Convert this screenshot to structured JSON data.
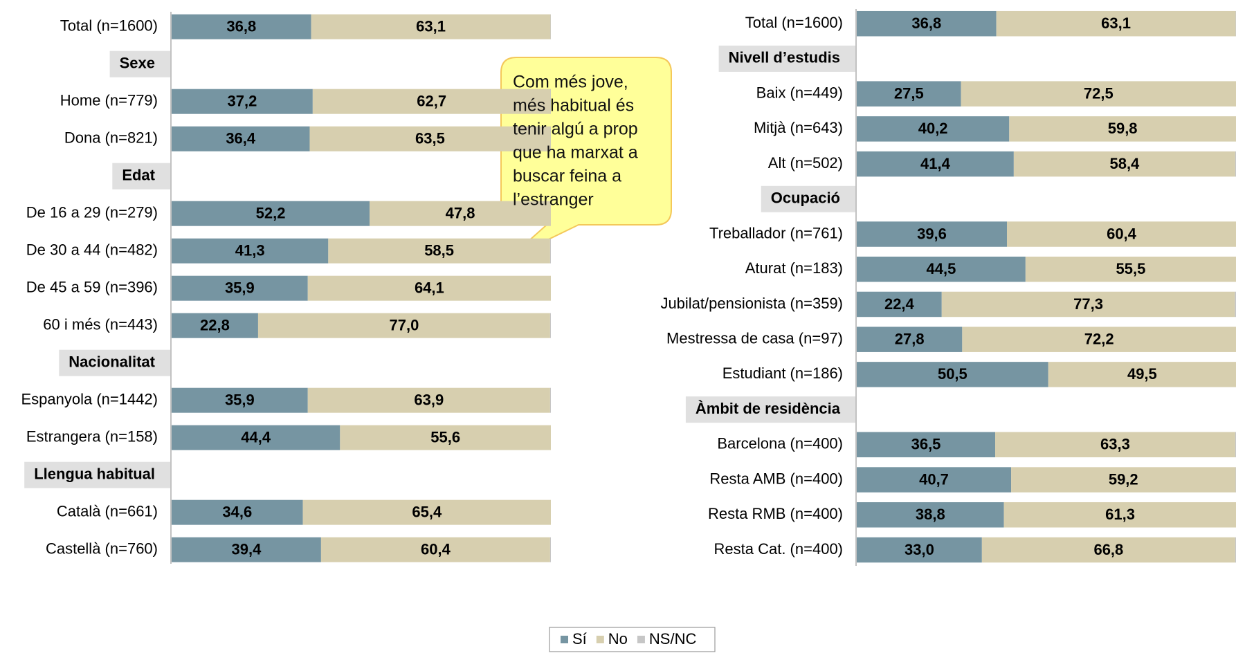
{
  "chart_data": [
    {
      "type": "bar",
      "orientation": "horizontal",
      "stacked": true,
      "categories": [
        "Total (n=1600)",
        "Sexe",
        "Home (n=779)",
        "Dona (n=821)",
        "Edat",
        "De 16 a 29 (n=279)",
        "De 30 a 44 (n=482)",
        "De 45 a 59 (n=396)",
        "60 i més (n=443)",
        "Nacionalitat",
        "Espanyola (n=1442)",
        "Estrangera (n=158)",
        "Llengua habitual",
        "Català (n=661)",
        "Castellà (n=760)"
      ],
      "series": [
        {
          "name": "Sí",
          "color": "#7695a2",
          "values": [
            36.8,
            null,
            37.2,
            36.4,
            null,
            52.2,
            41.3,
            35.9,
            22.8,
            null,
            35.9,
            44.4,
            null,
            34.6,
            39.4
          ],
          "value_labels": [
            "36,8",
            null,
            "37,2",
            "36,4",
            null,
            "52,2",
            "41,3",
            "35,9",
            "22,8",
            null,
            "35,9",
            "44,4",
            null,
            "34,6",
            "39,4"
          ]
        },
        {
          "name": "No",
          "color": "#d7cfaf",
          "values": [
            63.1,
            null,
            62.7,
            63.5,
            null,
            47.8,
            58.5,
            64.1,
            77.0,
            null,
            63.9,
            55.6,
            null,
            65.4,
            60.4
          ],
          "value_labels": [
            "63,1",
            null,
            "62,7",
            "63,5",
            null,
            "47,8",
            "58,5",
            "64,1",
            "77,0",
            null,
            "63,9",
            "55,6",
            null,
            "65,4",
            "60,4"
          ]
        },
        {
          "name": "NS/NC",
          "color": "#c6c6c6",
          "values": [
            0.1,
            null,
            0.1,
            0.1,
            null,
            0,
            0.2,
            0,
            0.2,
            null,
            0.2,
            0,
            null,
            0,
            0.2
          ]
        }
      ],
      "xlim": [
        0,
        100
      ],
      "annotation": [
        "Com més jove,",
        "més habitual és",
        "tenir algú a prop",
        "que ha marxat a",
        "buscar feina a",
        "l’estranger"
      ]
    },
    {
      "type": "bar",
      "orientation": "horizontal",
      "stacked": true,
      "categories": [
        "Total (n=1600)",
        "Nivell d’estudis",
        "Baix (n=449)",
        "Mitjà (n=643)",
        "Alt (n=502)",
        "Ocupació",
        "Treballador (n=761)",
        "Aturat (n=183)",
        "Jubilat/pensionista (n=359)",
        "Mestressa de casa (n=97)",
        "Estudiant (n=186)",
        "Àmbit de residència",
        "Barcelona (n=400)",
        "Resta AMB (n=400)",
        "Resta RMB (n=400)",
        "Resta Cat. (n=400)"
      ],
      "series": [
        {
          "color": "#7695a2",
          "values": [
            36.8,
            null,
            27.5,
            40.2,
            41.4,
            null,
            39.6,
            44.5,
            22.4,
            27.8,
            50.5,
            null,
            36.5,
            40.7,
            38.8,
            33.0
          ],
          "value_labels": [
            "36,8",
            null,
            "27,5",
            "40,2",
            "41,4",
            null,
            "39,6",
            "44,5",
            "22,4",
            "27,8",
            "50,5",
            null,
            "36,5",
            "40,7",
            "38,8",
            "33,0"
          ]
        },
        {
          "color": "#d7cfaf",
          "values": [
            63.1,
            null,
            72.5,
            59.8,
            58.4,
            null,
            60.4,
            55.5,
            77.3,
            72.2,
            49.5,
            null,
            63.3,
            59.2,
            61.3,
            66.8
          ],
          "value_labels": [
            "63,1",
            null,
            "72,5",
            "59,8",
            "58,4",
            null,
            "60,4",
            "55,5",
            "77,3",
            "72,2",
            "49,5",
            null,
            "63,3",
            "59,2",
            "61,3",
            "66,8"
          ]
        },
        {
          "color": "#c6c6c6",
          "values": [
            0.1,
            null,
            0,
            0,
            0.2,
            null,
            0,
            0,
            0.3,
            0,
            0,
            null,
            0.2,
            0.1,
            0,
            0.2
          ]
        }
      ],
      "xlim": [
        0,
        100
      ]
    }
  ]
}
